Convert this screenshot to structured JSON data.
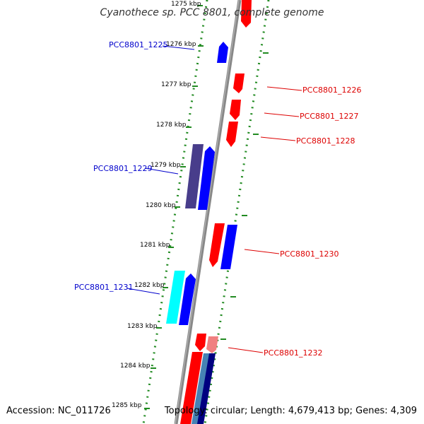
{
  "title": "Cyanothece sp. PCC 8801, complete genome",
  "footer": {
    "accession": "Accession: NC_011726",
    "topology": "Topology: circular; Length: 4,679,413 bp; Genes: 4,309"
  },
  "ticks": [
    "1275 kbp",
    "1276 kbp",
    "1277 kbp",
    "1278 kbp",
    "1279 kbp",
    "1280 kbp",
    "1281 kbp",
    "1282 kbp",
    "1283 kbp",
    "1284 kbp",
    "1285 kbp"
  ],
  "genes_forward": [
    "PCC8801_1225",
    "PCC8801_1229",
    "PCC8801_1231"
  ],
  "genes_reverse": [
    "PCC8801_1226",
    "PCC8801_1227",
    "PCC8801_1228",
    "PCC8801_1230",
    "PCC8801_1232"
  ],
  "colors": {
    "forward": "#0000ff",
    "reverse": "#ff0000",
    "forward_label": "#0000cc",
    "reverse_label": "#dd0000",
    "dots": "#228b22",
    "backbone": "#888888"
  }
}
